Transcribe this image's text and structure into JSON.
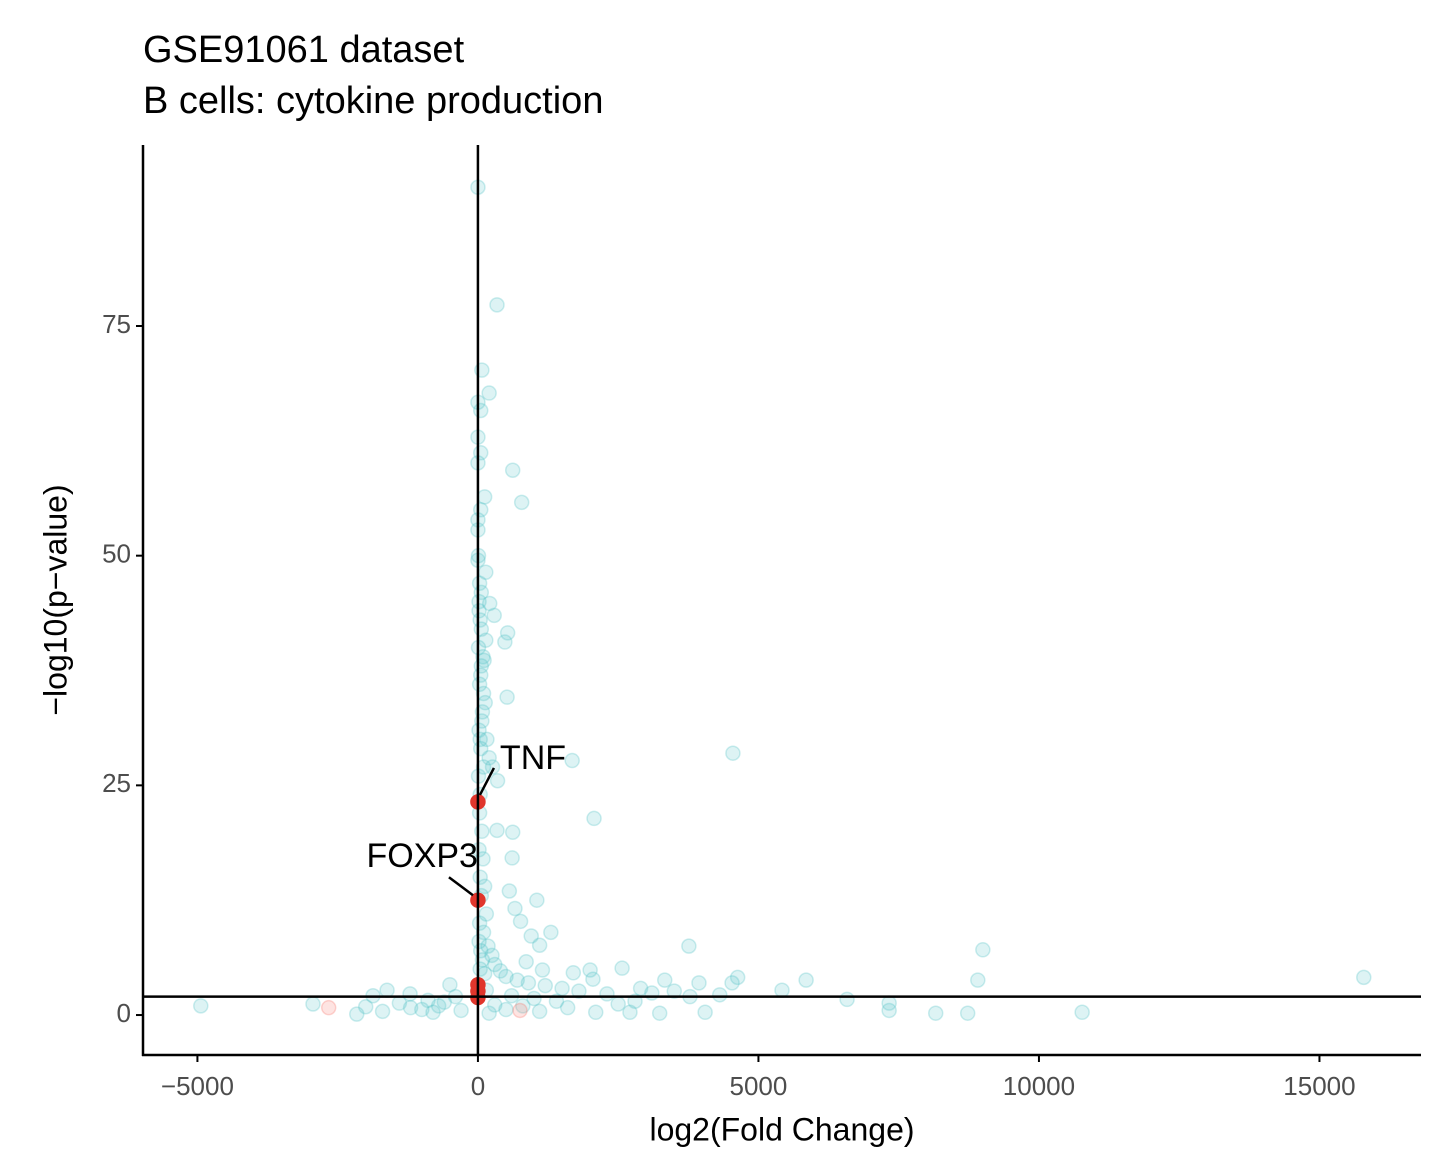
{
  "chart_data": {
    "type": "scatter",
    "title": "GSE91061 dataset",
    "subtitle": "B cells: cytokine production",
    "x_label": "log2(Fold Change)",
    "y_label": "−log10(p−value)",
    "xlim": [
      -5970,
      16810
    ],
    "ylim": [
      -4.35,
      94.7
    ],
    "xticks": [
      {
        "value": -5000,
        "label": "−5000"
      },
      0,
      5000,
      10000,
      15000
    ],
    "yticks": [
      0,
      25,
      50,
      75
    ],
    "grid": false,
    "hlines": [
      2
    ],
    "vlines": [
      0
    ],
    "series": [
      {
        "color": "#56c2c6",
        "opacity": 0.2,
        "x": [
          0,
          340,
          70,
          200,
          0,
          50,
          0,
          50,
          0,
          620,
          780,
          120,
          50,
          0,
          0,
          0,
          140,
          210,
          290,
          530,
          480,
          140,
          110,
          520,
          4545,
          1680,
          2070,
          620,
          340,
          610,
          1050,
          660,
          3760,
          9000,
          1100,
          15790,
          8910,
          5850,
          4630,
          4530,
          2570,
          2000,
          3940,
          3330,
          5420,
          6580,
          7330,
          7330,
          8160,
          8730,
          10770,
          4050,
          -4940,
          -2940,
          -2160,
          -1870,
          -1620,
          -1210,
          -890,
          -500,
          2710,
          3240,
          4310,
          3780,
          200,
          260,
          350,
          160,
          100,
          60,
          20,
          40,
          10,
          60,
          30,
          80,
          20,
          50,
          10,
          40,
          30,
          70,
          20,
          90,
          40,
          120,
          60,
          150,
          30,
          100,
          20,
          180,
          50,
          250,
          80,
          300,
          40,
          400,
          120,
          500,
          700,
          900,
          1200,
          1500,
          1800,
          2300,
          600,
          1000,
          1400,
          2500,
          -300,
          -700,
          -1000,
          -1400,
          -1700,
          -2000,
          -400,
          -800,
          -1200,
          -600,
          200,
          500,
          800,
          1100,
          1600,
          2100,
          2800,
          3100,
          300,
          150,
          10,
          30,
          60,
          20,
          90,
          50,
          130,
          70,
          40,
          100,
          1300,
          950,
          760,
          560,
          860,
          1150,
          1700,
          2050,
          2900,
          3500
        ],
        "values": [
          90.1,
          77.3,
          70.2,
          67.7,
          66.7,
          65.8,
          62.9,
          61.2,
          60.1,
          59.3,
          55.8,
          56.4,
          55,
          53.9,
          52.8,
          49.5,
          48.2,
          44.8,
          43.5,
          41.6,
          40.6,
          40.8,
          38.6,
          34.6,
          28.5,
          27.7,
          21.4,
          19.9,
          20.1,
          17.1,
          12.5,
          11.6,
          7.5,
          7.1,
          7.6,
          4.1,
          3.8,
          3.8,
          4.1,
          3.5,
          5.1,
          4.9,
          3.5,
          3.8,
          2.7,
          1.7,
          1.3,
          0.5,
          0.2,
          0.2,
          0.3,
          0.3,
          1.0,
          1.2,
          0.1,
          2.1,
          2.7,
          2.3,
          1.6,
          3.3,
          0.3,
          0.2,
          2.2,
          2.0,
          28,
          27,
          25.5,
          30,
          35,
          42,
          45,
          43,
          40,
          38,
          36,
          33,
          31,
          29,
          26,
          24,
          22,
          20,
          18,
          17,
          15,
          14,
          13,
          11,
          10,
          9,
          8,
          7.5,
          7,
          6.5,
          6,
          5.5,
          5,
          4.8,
          4.5,
          4.2,
          3.8,
          3.5,
          3.2,
          2.9,
          2.6,
          2.3,
          2.1,
          1.8,
          1.5,
          1.2,
          0.5,
          1.0,
          0.6,
          1.3,
          0.4,
          0.9,
          2.0,
          0.3,
          0.8,
          1.4,
          0.2,
          0.6,
          1.0,
          0.4,
          0.8,
          0.3,
          1.5,
          2.4,
          1.1,
          2.7,
          50,
          47,
          46,
          44,
          39,
          37,
          34,
          32,
          30,
          27,
          9.0,
          8.6,
          10.2,
          13.5,
          5.8,
          4.9,
          4.6,
          3.9,
          2.9,
          2.6
        ]
      },
      {
        "color": "#f8766d",
        "opacity": 0.2,
        "x": [
          -2660,
          750
        ],
        "values": [
          0.8,
          0.5
        ]
      },
      {
        "color": "#e0362c",
        "opacity": 1,
        "x": [
          0,
          0,
          0,
          0,
          0
        ],
        "values": [
          23.2,
          12.5,
          3.3,
          2.6,
          1.9
        ],
        "labels": [
          "TNF",
          "FOXP3",
          null,
          null,
          null
        ]
      }
    ]
  }
}
